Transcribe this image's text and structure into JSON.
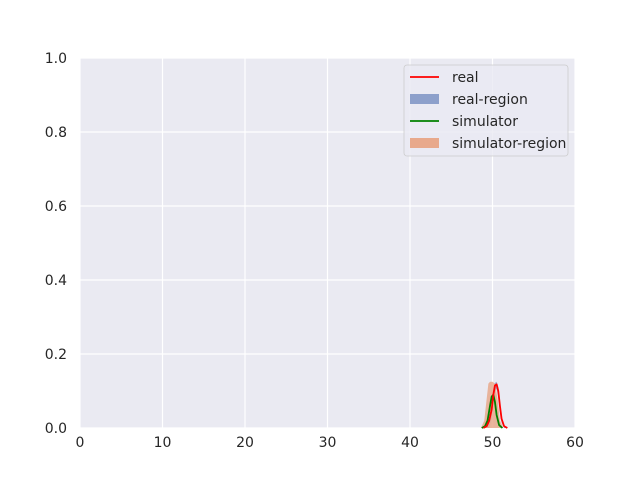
{
  "chart_data": {
    "type": "area",
    "xlim": [
      0,
      60
    ],
    "ylim": [
      0,
      1.0
    ],
    "xticks": [
      0,
      10,
      20,
      30,
      40,
      50,
      60
    ],
    "yticks": [
      0.0,
      0.2,
      0.4,
      0.6,
      0.8,
      1.0
    ],
    "xtick_labels": [
      "0",
      "10",
      "20",
      "30",
      "40",
      "50",
      "60"
    ],
    "ytick_labels": [
      "0.0",
      "0.2",
      "0.4",
      "0.6",
      "0.8",
      "1.0"
    ],
    "grid": true,
    "legend_position": "top-right",
    "legend": [
      "real",
      "real-region",
      "simulator",
      "simulator-region"
    ],
    "series": [
      {
        "name": "real",
        "kind": "line",
        "color": "#ff0000",
        "x": [
          48.9,
          49.3,
          49.6,
          49.9,
          50.1,
          50.3,
          50.5,
          50.7,
          50.9,
          51.1,
          51.4,
          51.8
        ],
        "y": [
          0,
          0.005,
          0.02,
          0.05,
          0.09,
          0.115,
          0.118,
          0.1,
          0.06,
          0.025,
          0.005,
          0
        ]
      },
      {
        "name": "real-region",
        "kind": "band",
        "color": "#8da0cb",
        "x": [
          48.9,
          49.3,
          49.6,
          49.9,
          50.1,
          50.3,
          50.5,
          50.7,
          50.9,
          51.1,
          51.4,
          51.8
        ],
        "lower": [
          0,
          0,
          0,
          0.03,
          0.07,
          0.1,
          0.105,
          0.085,
          0.045,
          0.015,
          0,
          0
        ],
        "upper": [
          0,
          0.008,
          0.025,
          0.06,
          0.1,
          0.122,
          0.125,
          0.11,
          0.07,
          0.03,
          0.008,
          0
        ]
      },
      {
        "name": "simulator",
        "kind": "line",
        "color": "#008000",
        "x": [
          48.7,
          49.1,
          49.4,
          49.7,
          49.9,
          50.1,
          50.3,
          50.5,
          50.8,
          51.2
        ],
        "y": [
          0,
          0.005,
          0.02,
          0.06,
          0.085,
          0.09,
          0.07,
          0.035,
          0.008,
          0
        ]
      },
      {
        "name": "simulator-region",
        "kind": "band",
        "color": "#e8a98c",
        "x": [
          48.6,
          49.0,
          49.3,
          49.5,
          49.7,
          50.0,
          50.3,
          50.6,
          50.9,
          51.3
        ],
        "lower": [
          0,
          0,
          0,
          0,
          0,
          0,
          0,
          0,
          0,
          0
        ],
        "upper": [
          0,
          0.02,
          0.08,
          0.12,
          0.125,
          0.125,
          0.12,
          0.08,
          0.02,
          0
        ]
      }
    ]
  }
}
